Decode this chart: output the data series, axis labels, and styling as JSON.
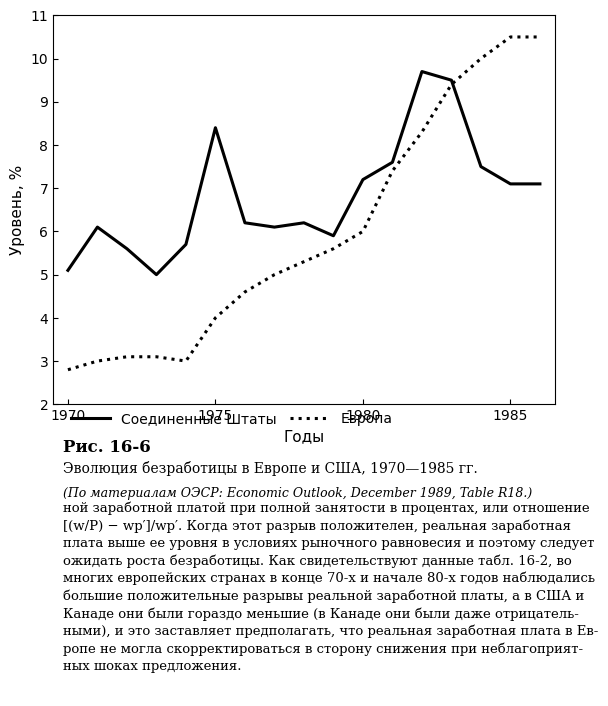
{
  "usa_years": [
    1970,
    1971,
    1972,
    1973,
    1974,
    1975,
    1976,
    1977,
    1978,
    1979,
    1980,
    1981,
    1982,
    1983,
    1984,
    1985,
    1986
  ],
  "usa_values": [
    5.1,
    6.1,
    5.6,
    5.0,
    5.7,
    8.4,
    6.2,
    6.1,
    6.2,
    5.9,
    7.2,
    7.6,
    9.7,
    9.5,
    7.5,
    7.1,
    7.1
  ],
  "europe_years": [
    1970,
    1971,
    1972,
    1973,
    1974,
    1975,
    1976,
    1977,
    1978,
    1979,
    1980,
    1981,
    1982,
    1983,
    1984,
    1985,
    1986
  ],
  "europe_values": [
    2.8,
    3.0,
    3.1,
    3.1,
    3.0,
    4.0,
    4.6,
    5.0,
    5.3,
    5.6,
    6.0,
    7.4,
    8.3,
    9.4,
    10.0,
    10.5,
    10.5
  ],
  "xlim": [
    1969.5,
    1986.5
  ],
  "ylim": [
    2,
    11
  ],
  "xticks": [
    1970,
    1975,
    1980,
    1985
  ],
  "yticks": [
    2,
    3,
    4,
    5,
    6,
    7,
    8,
    9,
    10,
    11
  ],
  "xlabel": "Годы",
  "ylabel": "Уровень, %",
  "legend_usa": "Соединенные Штаты",
  "legend_europe": "Европа",
  "fig_caption_bold": "Рис. 16-6",
  "fig_caption_title": "Эволюция безработицы в Европе и США, 1970—1985 гг.",
  "fig_caption_source": "(По материалам ОЭСР: Economic Outlook, December 1989, Table R18.)",
  "body_lines": [
    "ной заработной платой при полной занятости в процентах, или отношение",
    "[(w/P) − wp′]/wp′. Когда этот разрыв положителен, реальная заработная",
    "плата выше ее уровня в условиях рыночного равновесия и поэтому следует",
    "ожидать роста безработицы. Как свидетельствуют данные табл. 16-2, во",
    "многих европейских странах в конце 70-х и начале 80-х годов наблюдались",
    "большие положительные разрывы реальной заработной платы, а в США и",
    "Канаде они были гораздо меньшие (в Канаде они были даже отрицатель-",
    "ными), и это заставляет предполагать, что реальная заработная плата в Ев-",
    "ропе не могла скорректироваться в сторону снижения при неблагоприят-",
    "ных шоках предложения."
  ],
  "background_color": "#ffffff",
  "line_color": "#000000"
}
